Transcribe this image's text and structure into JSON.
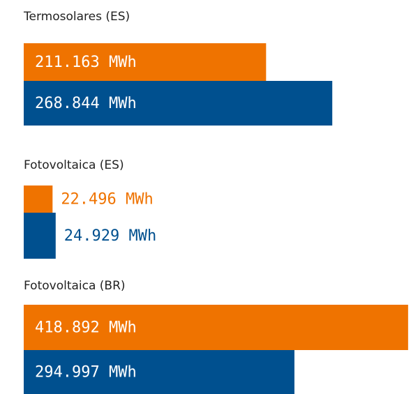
{
  "chart_data": [
    {
      "type": "bar",
      "orientation": "horizontal",
      "title": "Termosolares (ES)",
      "xlim": [
        0,
        335000
      ],
      "series": [
        {
          "color": "#ef7300",
          "values": [
            211163
          ],
          "value_labels": [
            "211.163 MWh"
          ]
        },
        {
          "color": "#00508f",
          "values": [
            268844
          ],
          "value_labels": [
            "268.844 MWh"
          ]
        }
      ]
    },
    {
      "type": "bar",
      "orientation": "horizontal",
      "title": "Fotovoltaica (ES)",
      "xlim": [
        0,
        300000
      ],
      "series": [
        {
          "color": "#ef7300",
          "values": [
            22496
          ],
          "value_labels": [
            "22.496 MWh"
          ]
        },
        {
          "color": "#00508f",
          "values": [
            24929
          ],
          "value_labels": [
            "24.929 MWh"
          ]
        }
      ]
    },
    {
      "type": "bar",
      "orientation": "horizontal",
      "title": "Fotovoltaica (BR)",
      "xlim": [
        0,
        419000
      ],
      "series": [
        {
          "color": "#ef7300",
          "values": [
            418892
          ],
          "value_labels": [
            "418.892 MWh"
          ]
        },
        {
          "color": "#00508f",
          "values": [
            294997
          ],
          "value_labels": [
            "294.997 MWh"
          ]
        }
      ]
    }
  ]
}
